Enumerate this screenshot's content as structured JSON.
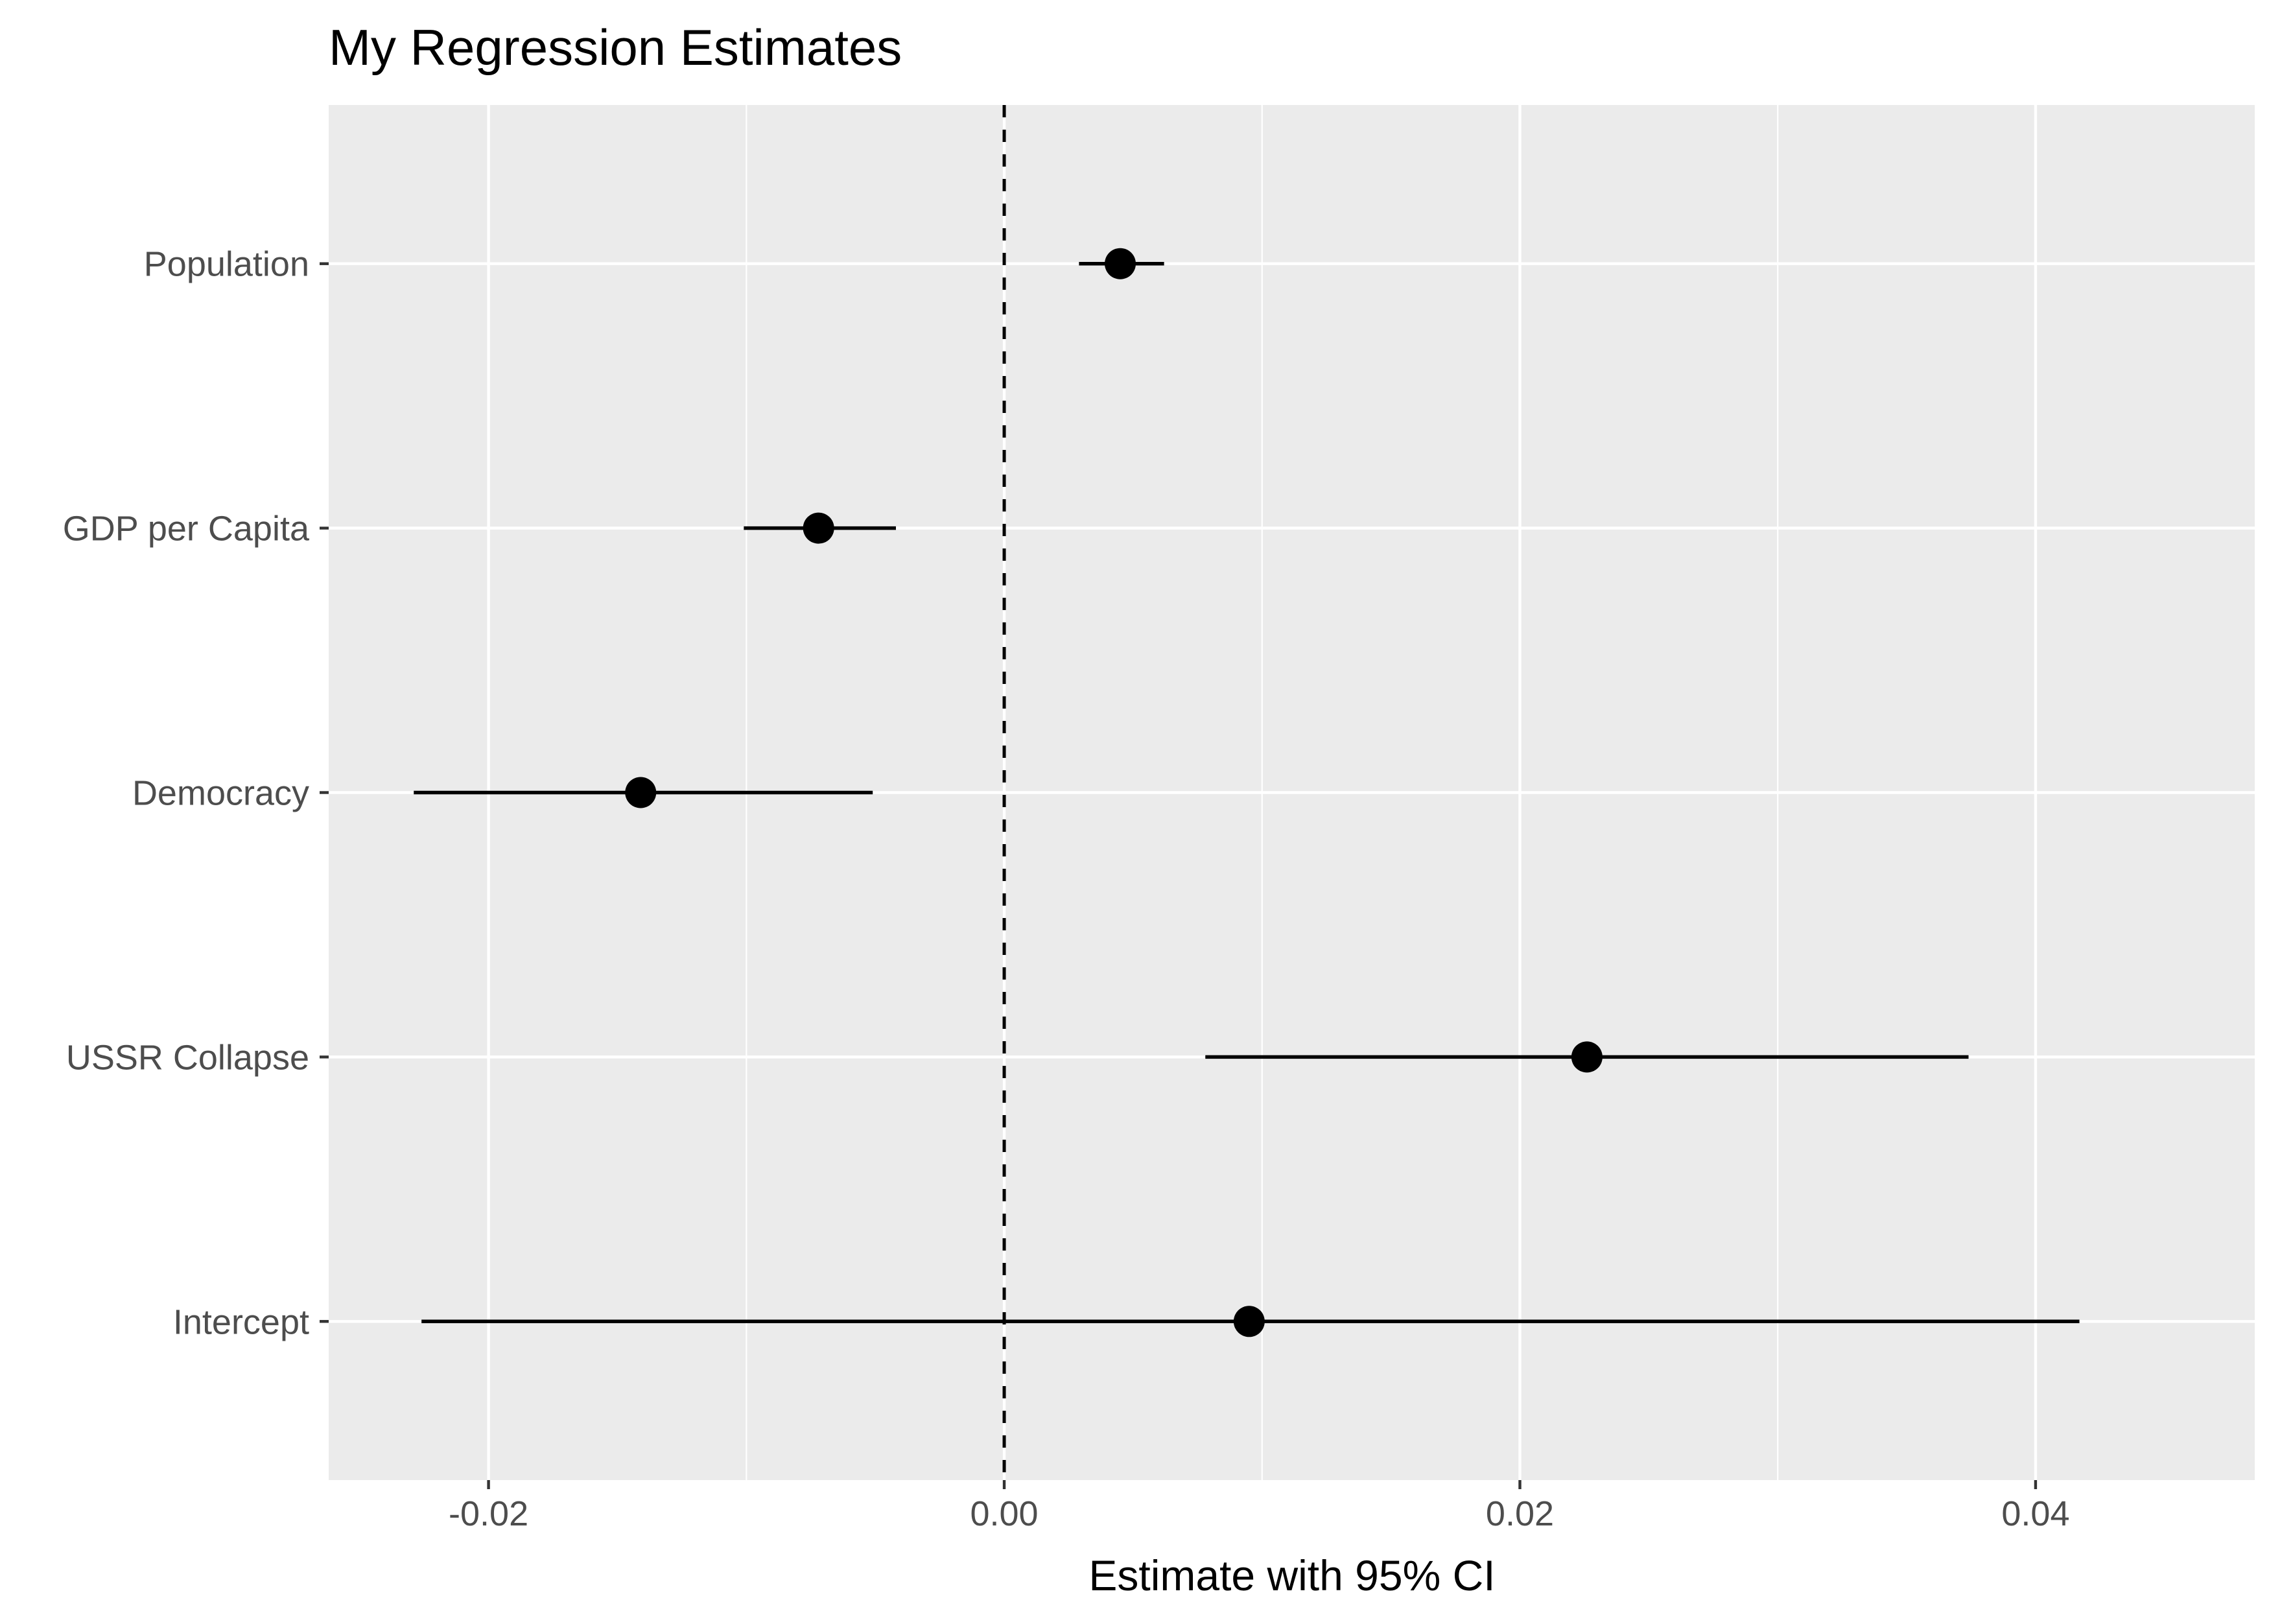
{
  "chart_data": {
    "type": "scatter",
    "title": "My Regression Estimates",
    "xlabel": "Estimate with 95% CI",
    "ylabel": "",
    "xlim": [
      -0.0262,
      0.0485
    ],
    "x_ticks": [
      -0.02,
      0.0,
      0.02,
      0.04
    ],
    "x_tick_labels": [
      "-0.02",
      "0.00",
      "0.02",
      "0.04"
    ],
    "reference_line": {
      "x": 0,
      "style": "dashed"
    },
    "grid": true,
    "legend": "none",
    "series": [
      {
        "points": [
          {
            "label": "Population",
            "estimate": 0.0045,
            "ci_low": 0.0029,
            "ci_high": 0.0062
          },
          {
            "label": "GDP per Capita",
            "estimate": -0.0072,
            "ci_low": -0.0101,
            "ci_high": -0.0042
          },
          {
            "label": "Democracy",
            "estimate": -0.0141,
            "ci_low": -0.0229,
            "ci_high": -0.0051
          },
          {
            "label": "USSR Collapse",
            "estimate": 0.0226,
            "ci_low": 0.0078,
            "ci_high": 0.0374
          },
          {
            "label": "Intercept",
            "estimate": 0.0095,
            "ci_low": -0.0226,
            "ci_high": 0.0417
          }
        ]
      }
    ]
  },
  "colors": {
    "panel_background": "#ebebeb",
    "grid_major": "#ffffff",
    "grid_minor": "#ffffff",
    "point": "#000000",
    "error_bar": "#000000",
    "reference_line": "#000000",
    "tick_label": "#4d4d4d",
    "tick_mark": "#333333"
  }
}
